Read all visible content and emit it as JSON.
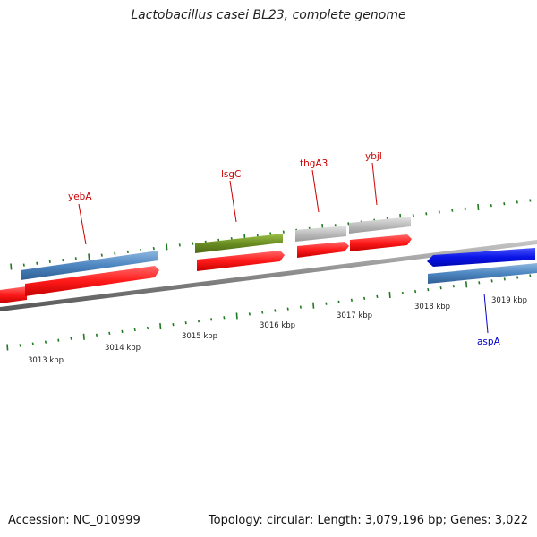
{
  "title": "Lactobacillus casei BL23, complete genome",
  "footer": {
    "accession": "Accession: NC_010999",
    "summary": "Topology: circular; Length: 3,079,196 bp; Genes: 3,022"
  },
  "genes": [
    {
      "name": "yebA",
      "color": "#cc0000"
    },
    {
      "name": "lsgC",
      "color": "#cc0000"
    },
    {
      "name": "thgA3",
      "color": "#cc0000"
    },
    {
      "name": "ybjI",
      "color": "#cc0000"
    },
    {
      "name": "aspA",
      "color": "#0000cc"
    }
  ],
  "ruler": {
    "labels": [
      "3013 kbp",
      "3014 kbp",
      "3015 kbp",
      "3016 kbp",
      "3017 kbp",
      "3018 kbp",
      "3019 kbp"
    ]
  },
  "colors": {
    "backbone": "#888888",
    "cds": "#ff1a1a",
    "gene_blue": "#4d86c0",
    "gene_green": "#6b8e23",
    "gene_gray": "#bdbdbd",
    "gene_forward_blue": "#0a14e6",
    "tick": "#1f7a1f"
  }
}
